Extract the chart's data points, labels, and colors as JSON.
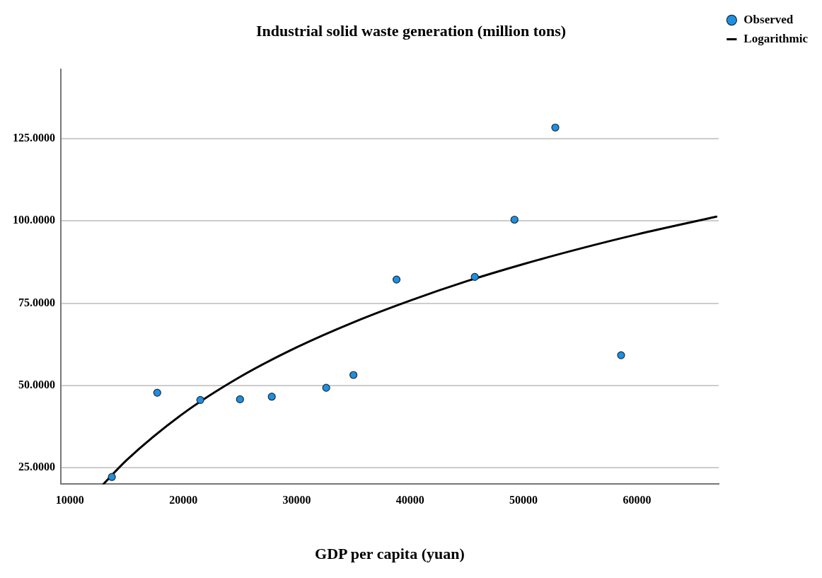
{
  "chart_data": {
    "type": "scatter",
    "title": "Industrial solid waste generation (million tons)",
    "xlabel": "GDP per capita (yuan)",
    "xlim": [
      9200,
      67200
    ],
    "xticks": [
      10000,
      20000,
      30000,
      40000,
      50000,
      60000
    ],
    "ylim": [
      20,
      146
    ],
    "yticks": [
      {
        "value": 25,
        "label": "25.0000"
      },
      {
        "value": 50,
        "label": "50.0000"
      },
      {
        "value": 75,
        "label": "75.0000"
      },
      {
        "value": 100,
        "label": "100.0000"
      },
      {
        "value": 125,
        "label": "125.0000"
      }
    ],
    "grid": "y",
    "legend": "top right",
    "marker": "circle",
    "series": [
      {
        "name": "Observed",
        "color": "#1f8fe0",
        "x": [
          13700,
          17700,
          21500,
          25000,
          27800,
          32600,
          35000,
          38800,
          45700,
          49200,
          52800,
          58600
        ],
        "values": [
          22.2,
          47.8,
          45.6,
          45.8,
          46.6,
          49.3,
          53.2,
          82.2,
          83.0,
          100.4,
          128.4,
          59.2
        ]
      },
      {
        "name": "Logarithmic",
        "type": "line",
        "color": "#000000",
        "marker": "none",
        "line_style": "solid",
        "x": [
          12950,
          15000,
          20000,
          25000,
          30000,
          35000,
          40000,
          45000,
          50000,
          55000,
          60000,
          67000
        ],
        "values": [
          20,
          27.3,
          41.5,
          52.6,
          61.6,
          69.2,
          75.8,
          81.7,
          86.9,
          91.6,
          95.9,
          101.3
        ]
      }
    ]
  }
}
